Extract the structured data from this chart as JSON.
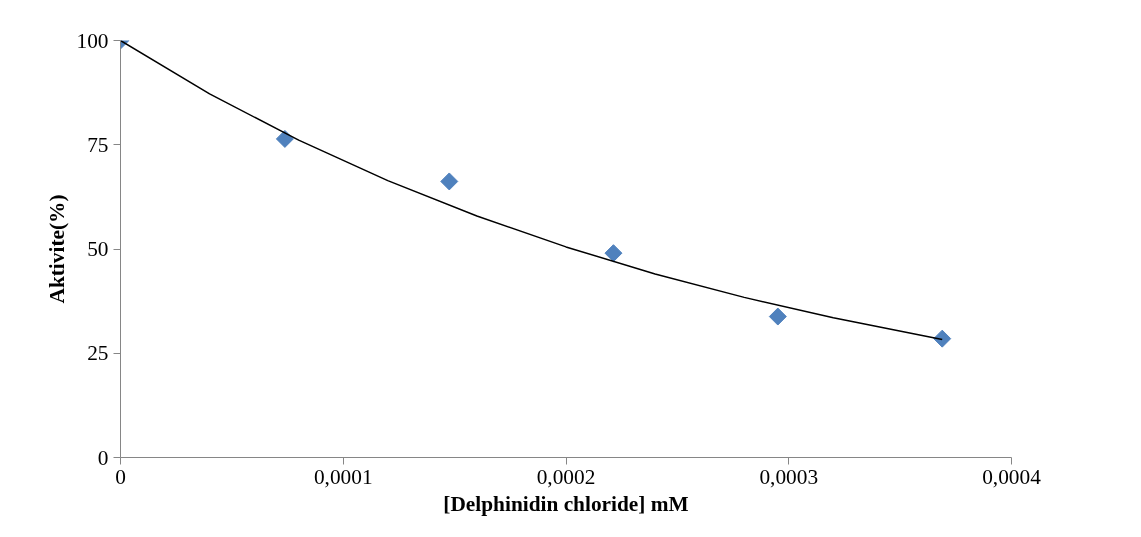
{
  "chart_data": {
    "type": "scatter",
    "xlabel": "[Delphinidin chloride] mM",
    "ylabel": "Aktivite(%)",
    "x": [
      0,
      7.38e-05,
      0.0001476,
      0.0002213,
      0.0002951,
      0.0003689
    ],
    "series": [
      {
        "color": "#4f81bd",
        "marker": "diamond",
        "values": [
          100,
          76.4,
          66.2,
          49.0,
          33.8,
          28.5
        ]
      },
      {
        "type": "line",
        "color": "#000000",
        "marker": "none",
        "x": [
          0,
          4e-05,
          8e-05,
          0.00012,
          0.00016,
          0.0002,
          0.00024,
          0.00028,
          0.00032,
          0.0003689
        ],
        "values": [
          100,
          87.2,
          76.1,
          66.4,
          57.9,
          50.5,
          44.0,
          38.4,
          33.5,
          28.3
        ]
      }
    ],
    "xlim": [
      0,
      0.0004
    ],
    "ylim": [
      0,
      100
    ],
    "xticks": [
      0,
      {
        "value": 0.0001,
        "label": "0,0001"
      },
      {
        "value": 0.0002,
        "label": "0,0002"
      },
      {
        "value": 0.0003,
        "label": "0,0003"
      },
      {
        "value": 0.0004,
        "label": "0,0004"
      }
    ],
    "yticks": [
      0,
      25,
      50,
      75,
      100
    ],
    "grid": false
  }
}
